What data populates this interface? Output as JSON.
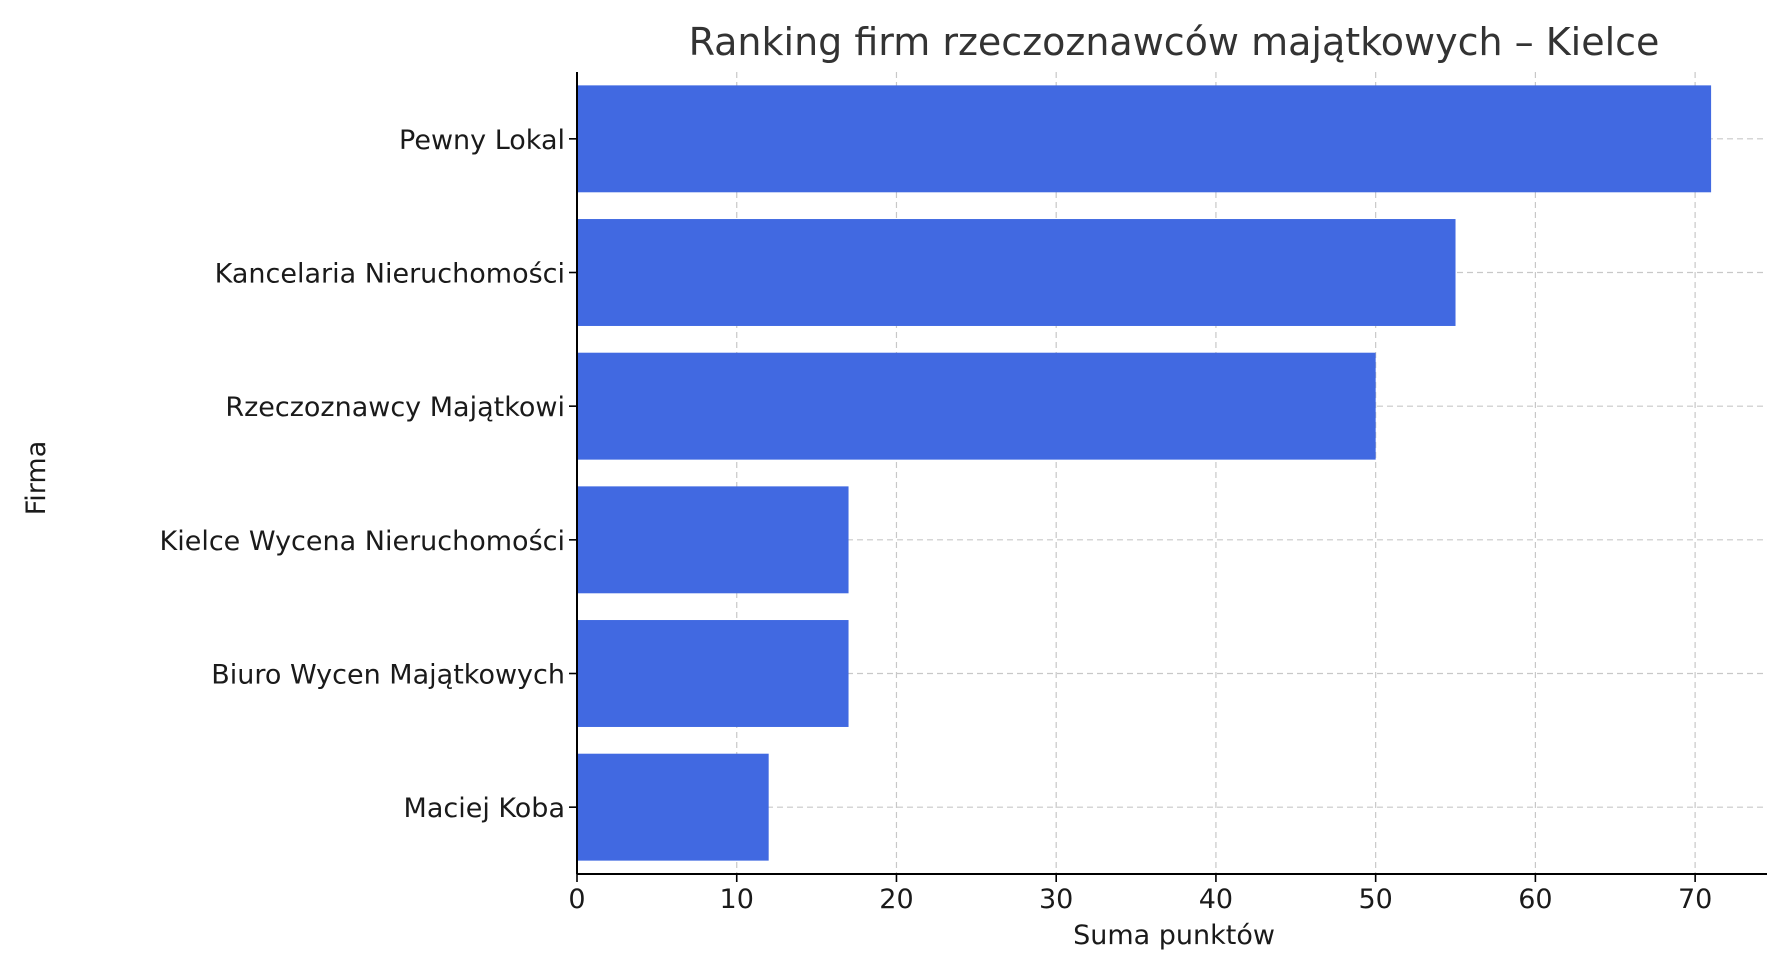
{
  "chart_data": {
    "type": "bar",
    "orientation": "horizontal",
    "title": "Ranking firm rzeczoznawców majątkowych – Kielce",
    "xlabel": "Suma punktów",
    "ylabel": "Firma",
    "categories": [
      "Pewny Lokal",
      "Kancelaria Nieruchomości",
      "Rzeczoznawcy Majątkowi",
      "Kielce Wycena Nieruchomości",
      "Biuro Wycen Majątkowych",
      "Maciej Koba"
    ],
    "values": [
      71,
      55,
      50,
      17,
      17,
      12
    ],
    "xlim": [
      0,
      74.5
    ],
    "xticks": [
      0,
      10,
      20,
      30,
      40,
      50,
      60,
      70
    ],
    "grid": true,
    "bar_color": "#4169e1"
  }
}
